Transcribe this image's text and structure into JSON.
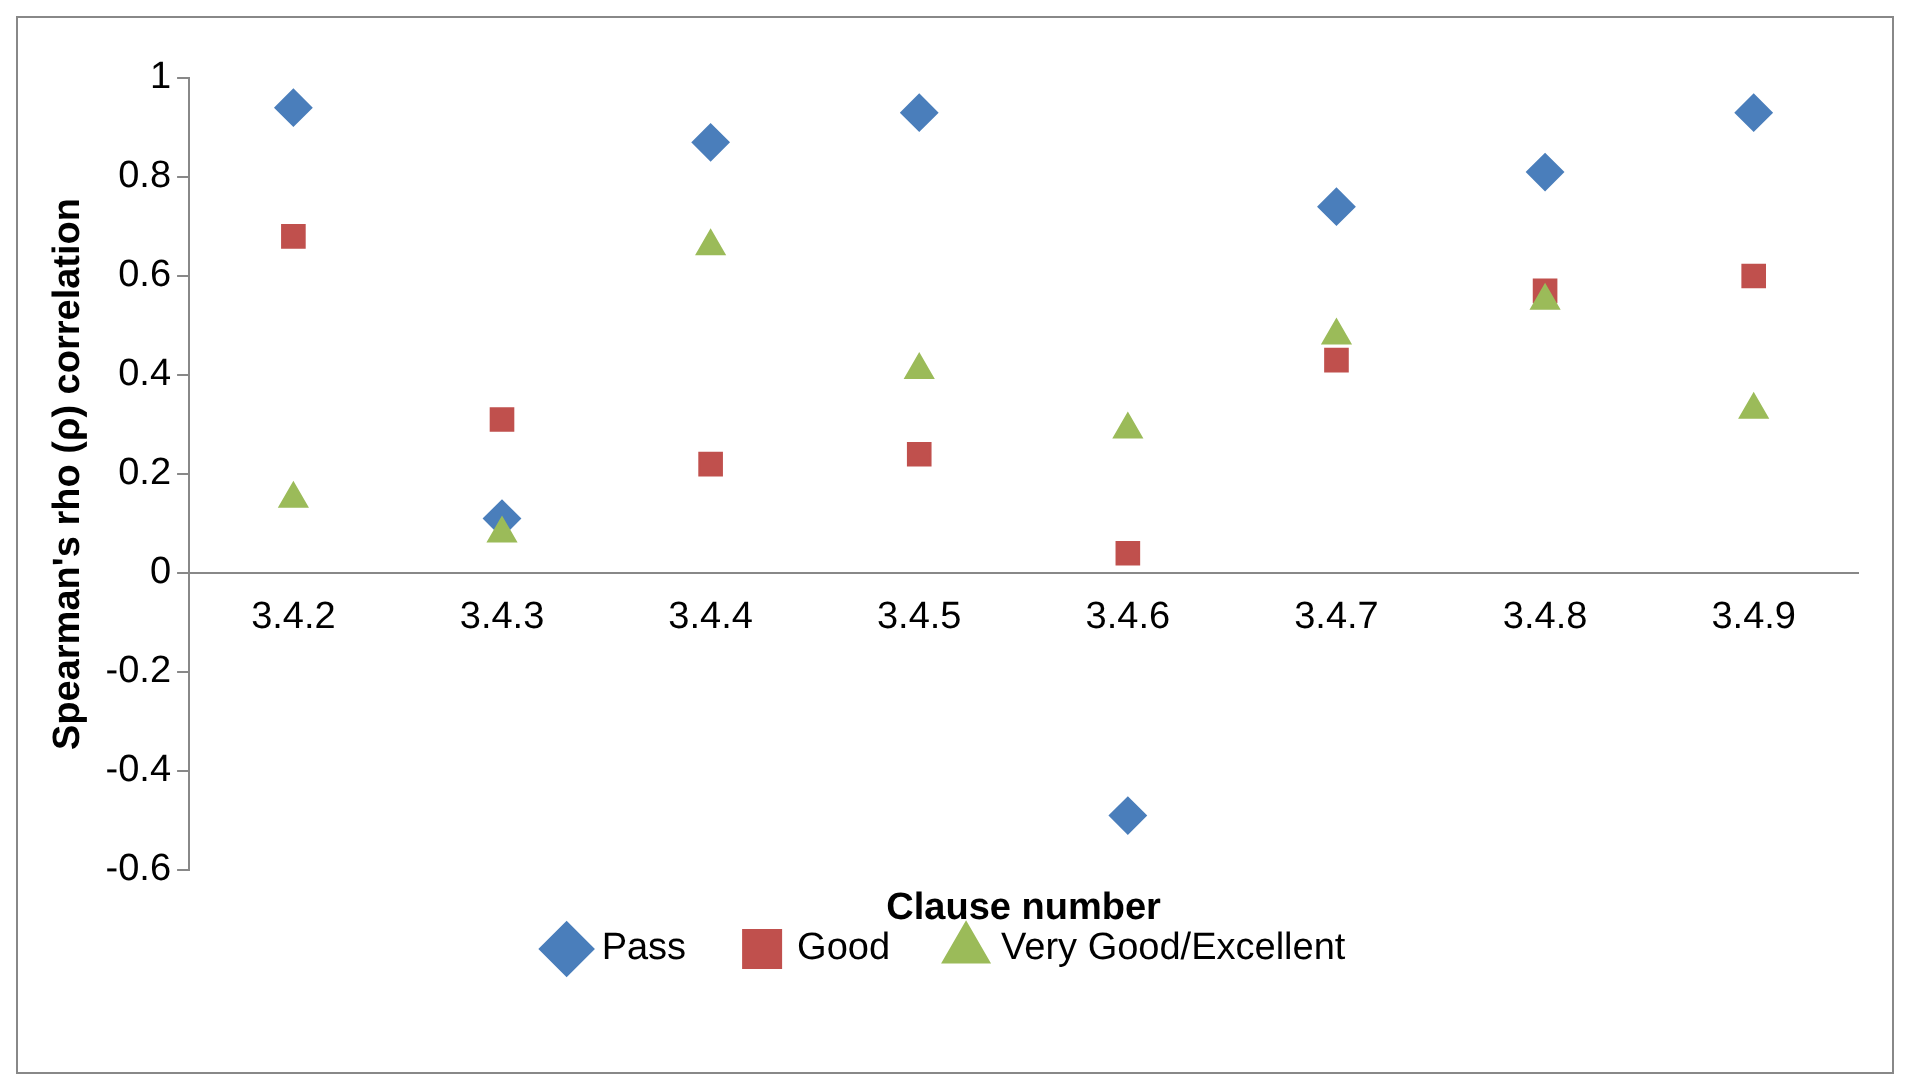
{
  "chart_data": {
    "type": "scatter",
    "xlabel": "Clause number",
    "ylabel": "Spearman's rho (ρ) correlation",
    "categories": [
      "3.4.2",
      "3.4.3",
      "3.4.4",
      "3.4.5",
      "3.4.6",
      "3.4.7",
      "3.4.8",
      "3.4.9"
    ],
    "series": [
      {
        "name": "Pass",
        "color": "#4a7ebb",
        "marker": "diamond",
        "values": [
          0.94,
          0.11,
          0.87,
          0.93,
          -0.49,
          0.74,
          0.81,
          0.93
        ]
      },
      {
        "name": "Good",
        "color": "#c0504d",
        "marker": "square",
        "values": [
          0.68,
          0.31,
          0.22,
          0.24,
          0.04,
          0.43,
          0.57,
          0.6
        ]
      },
      {
        "name": "Very Good/Excellent",
        "color": "#9bbb59",
        "marker": "triangle",
        "values": [
          0.15,
          0.08,
          0.66,
          0.41,
          0.29,
          0.48,
          0.55,
          0.33
        ]
      }
    ],
    "ylim": [
      -0.6,
      1
    ],
    "yticks": [
      -0.6,
      -0.4,
      -0.2,
      0,
      0.2,
      0.4,
      0.6,
      0.8,
      1
    ],
    "grid": false,
    "legend": "bottom"
  }
}
